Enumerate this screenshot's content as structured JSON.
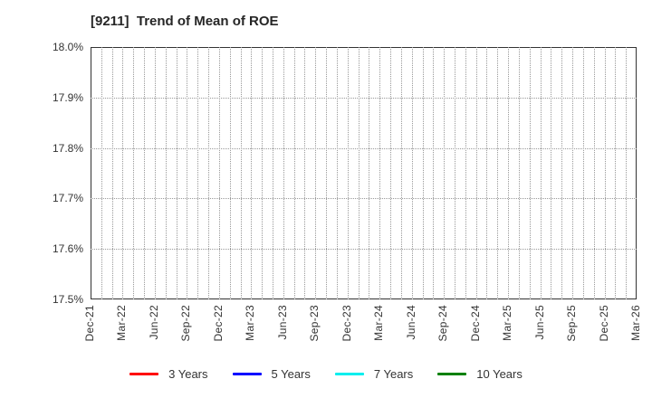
{
  "page": {
    "background": "#ffffff"
  },
  "chart_data": {
    "type": "line",
    "title": "[9211]  Trend of Mean of ROE",
    "title_color": "#262626",
    "xlabel": "",
    "ylabel": "",
    "x_tick_labels": [
      "Dec-21",
      "Mar-22",
      "Jun-22",
      "Sep-22",
      "Dec-22",
      "Mar-23",
      "Jun-23",
      "Sep-23",
      "Dec-23",
      "Mar-24",
      "Jun-24",
      "Sep-24",
      "Dec-24",
      "Mar-25",
      "Jun-25",
      "Sep-25",
      "Dec-25",
      "Mar-26"
    ],
    "y_tick_labels": [
      "18.0%",
      "17.9%",
      "17.8%",
      "17.7%",
      "17.6%",
      "17.5%"
    ],
    "ylim": [
      17.5,
      18.0
    ],
    "y_unit": "%",
    "axis_color": "#333333",
    "grid": {
      "style": "dotted",
      "color": "#999999",
      "vertical": "monthly",
      "horizontal_step_pct": 0.1
    },
    "plot_content": "empty (no data lines visible within y-range)",
    "legend_position": "bottom-center",
    "series": [
      {
        "name": "3 Years",
        "color": "#ff0000",
        "values": []
      },
      {
        "name": "5 Years",
        "color": "#0000ff",
        "values": []
      },
      {
        "name": "7 Years",
        "color": "#00eeee",
        "values": []
      },
      {
        "name": "10 Years",
        "color": "#008000",
        "values": []
      }
    ]
  }
}
